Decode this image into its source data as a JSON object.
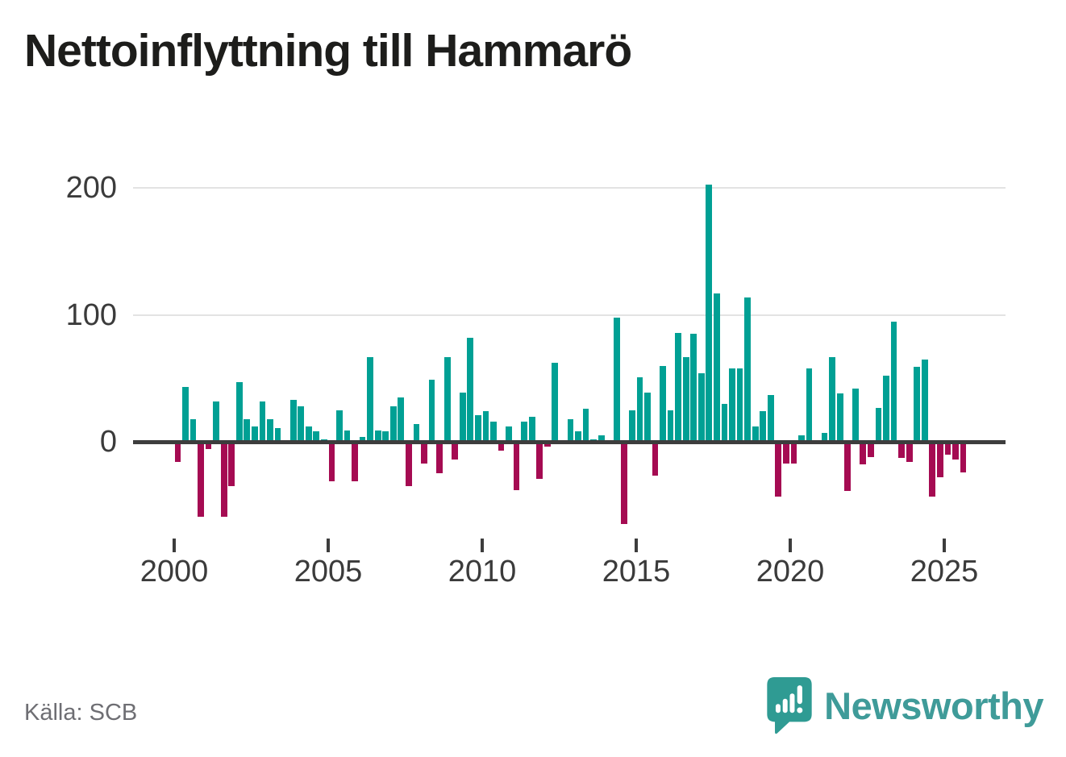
{
  "title": "Nettoinflyttning till Hammarö",
  "source": "Källa: SCB",
  "branding": {
    "name": "Newsworthy"
  },
  "chart_data": {
    "type": "bar",
    "title": "Nettoinflyttning till Hammarö",
    "frequency": "quarterly",
    "start_period": "2000-Q1",
    "end_period": "2025-Q3",
    "values": [
      -16,
      43,
      18,
      -59,
      -6,
      32,
      -59,
      -35,
      47,
      18,
      12,
      32,
      18,
      11,
      0,
      33,
      28,
      12,
      8,
      2,
      -31,
      25,
      9,
      -31,
      4,
      67,
      9,
      8,
      28,
      35,
      -35,
      14,
      -17,
      49,
      -25,
      67,
      -14,
      39,
      82,
      21,
      24,
      16,
      -7,
      12,
      -38,
      16,
      20,
      -29,
      -4,
      62,
      0,
      18,
      8,
      26,
      2,
      5,
      0,
      98,
      -65,
      25,
      51,
      39,
      -27,
      60,
      25,
      86,
      67,
      85,
      54,
      203,
      117,
      30,
      58,
      58,
      114,
      12,
      24,
      37,
      -43,
      -17,
      -17,
      5,
      58,
      0,
      7,
      67,
      38,
      -39,
      42,
      -18,
      -12,
      27,
      52,
      95,
      -13,
      -16,
      59,
      65,
      -43,
      -28,
      -10,
      -14,
      -24
    ],
    "yticks": [
      200,
      100,
      0
    ],
    "xticks": [
      2000,
      2005,
      2010,
      2015,
      2020,
      2025
    ],
    "ylim": [
      -75,
      215
    ],
    "grid": "horizontal",
    "legend": "none",
    "colors": {
      "positive": "#00a094",
      "negative": "#a50b52"
    }
  }
}
